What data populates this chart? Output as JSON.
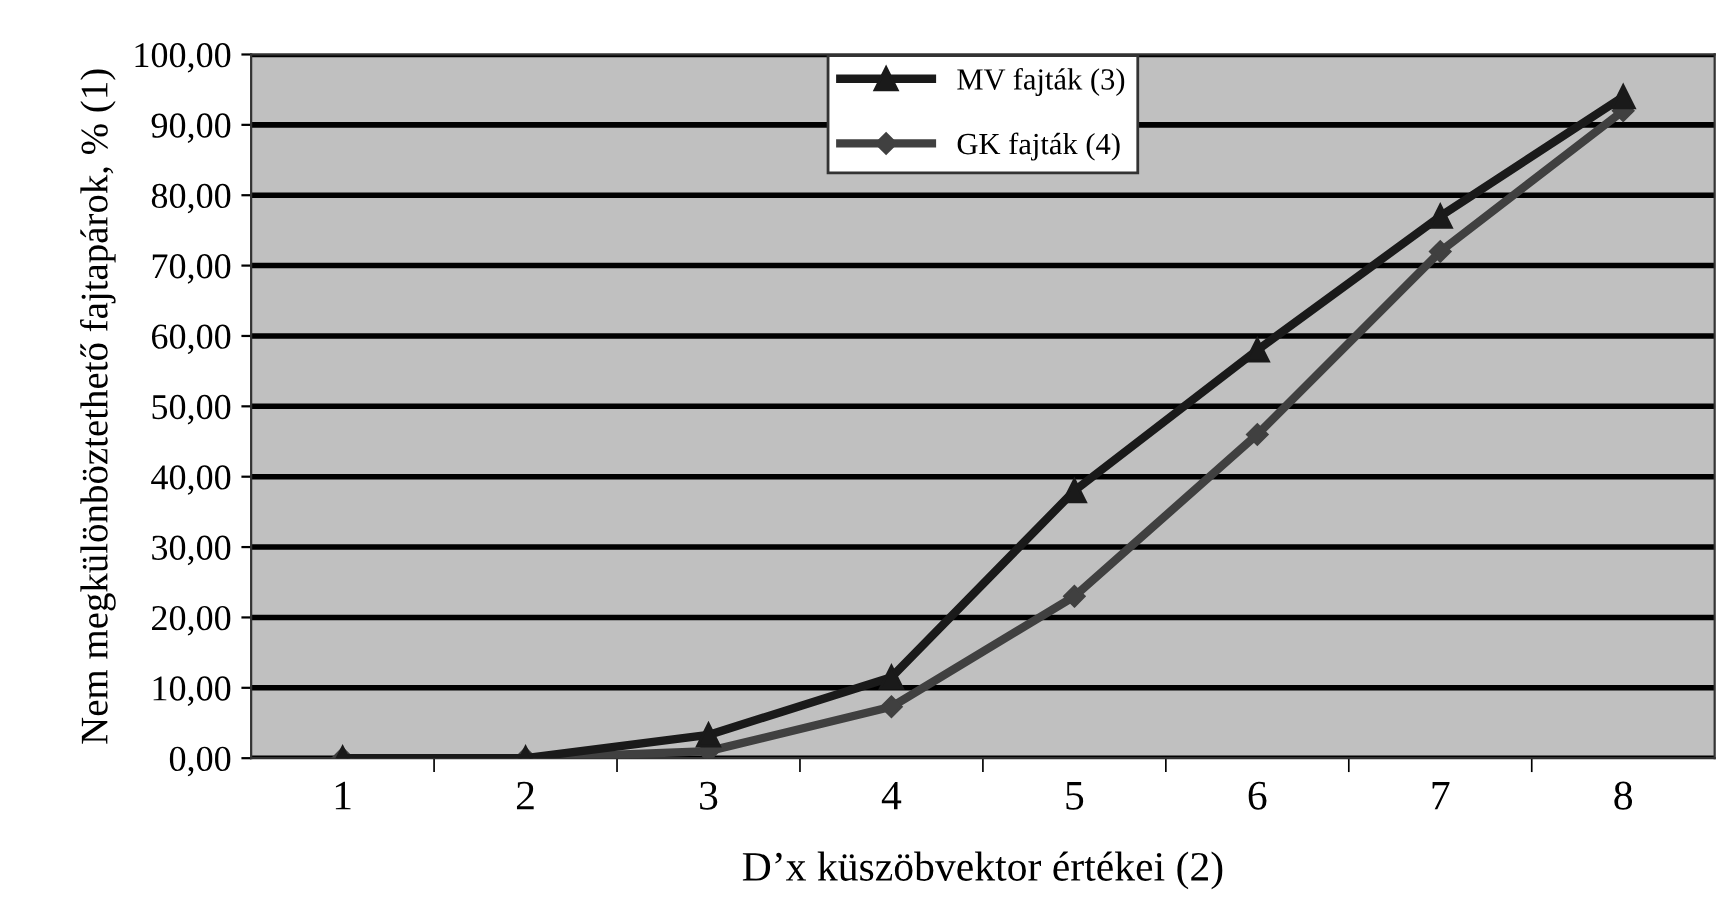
{
  "chart_data": {
    "type": "line",
    "xlabel": "D’x küszöbvektor értékei (2)",
    "ylabel": "Nem megkülönböztethető fajtapárok, % (1)",
    "categories": [
      "1",
      "2",
      "3",
      "4",
      "5",
      "6",
      "7",
      "8"
    ],
    "series": [
      {
        "name": "MV fajták (3)",
        "color": "#1a1a1a",
        "marker": "triangle",
        "values": [
          0,
          0,
          3.3,
          11.5,
          38,
          58,
          77,
          94
        ]
      },
      {
        "name": "GK fajták (4)",
        "color": "#404040",
        "marker": "diamond",
        "values": [
          0,
          0,
          1,
          7.3,
          23,
          46,
          72,
          92
        ]
      }
    ],
    "ylim": [
      0,
      100
    ],
    "yticks": [
      {
        "value": 0,
        "label": "0,00"
      },
      {
        "value": 10,
        "label": "10,00"
      },
      {
        "value": 20,
        "label": "20,00"
      },
      {
        "value": 30,
        "label": "30,00"
      },
      {
        "value": 40,
        "label": "40,00"
      },
      {
        "value": 50,
        "label": "50,00"
      },
      {
        "value": 60,
        "label": "60,00"
      },
      {
        "value": 70,
        "label": "70,00"
      },
      {
        "value": 80,
        "label": "80,00"
      },
      {
        "value": 90,
        "label": "90,00"
      },
      {
        "value": 100,
        "label": "100,00"
      }
    ],
    "grid": "y",
    "legend": "top",
    "line_style": "solid"
  }
}
